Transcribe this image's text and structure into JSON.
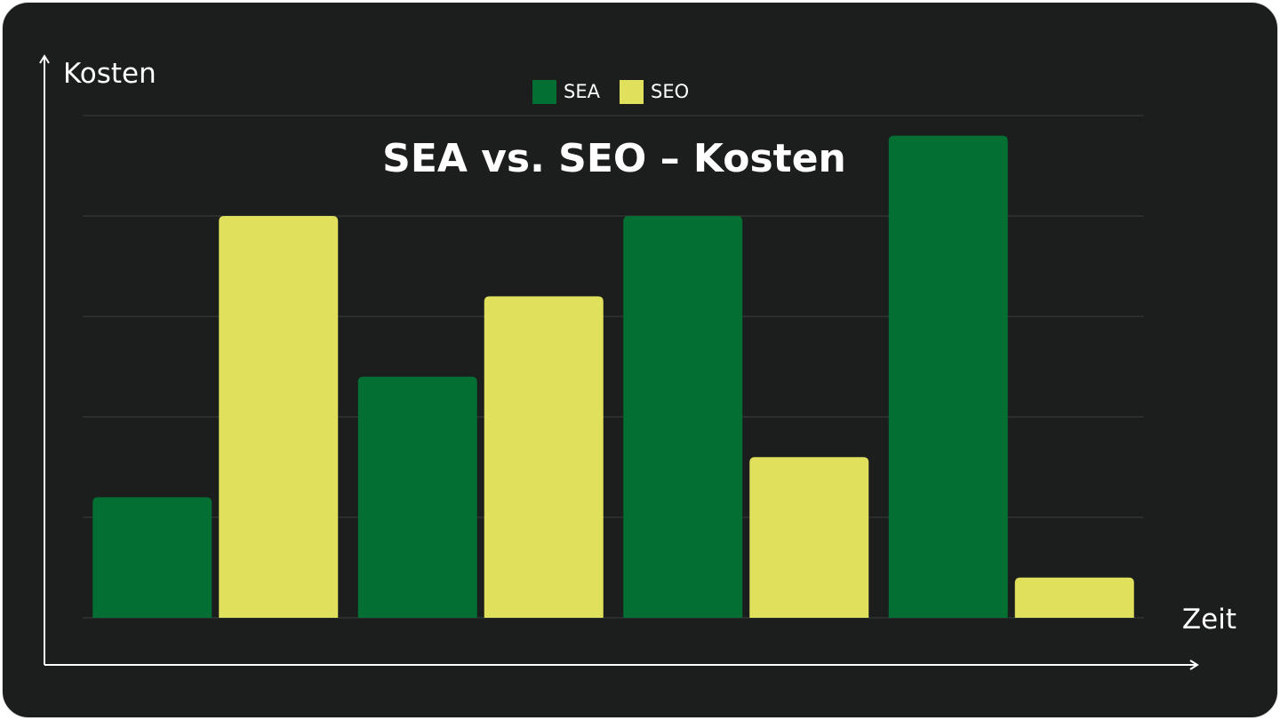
{
  "chart_data": {
    "type": "bar",
    "title": "SEA vs. SEO – Kosten",
    "ylabel": "Kosten",
    "xlabel": "Zeit",
    "categories": [
      "",
      "",
      "",
      ""
    ],
    "series": [
      {
        "name": "SEA",
        "color": "#036f33",
        "values": [
          1.2,
          2.4,
          4.0,
          4.8
        ]
      },
      {
        "name": "SEO",
        "color": "#e0e05c",
        "values": [
          4.0,
          3.2,
          1.6,
          0.4
        ]
      }
    ],
    "ylim": [
      0,
      5
    ],
    "grid": true,
    "legend": "top-center"
  }
}
